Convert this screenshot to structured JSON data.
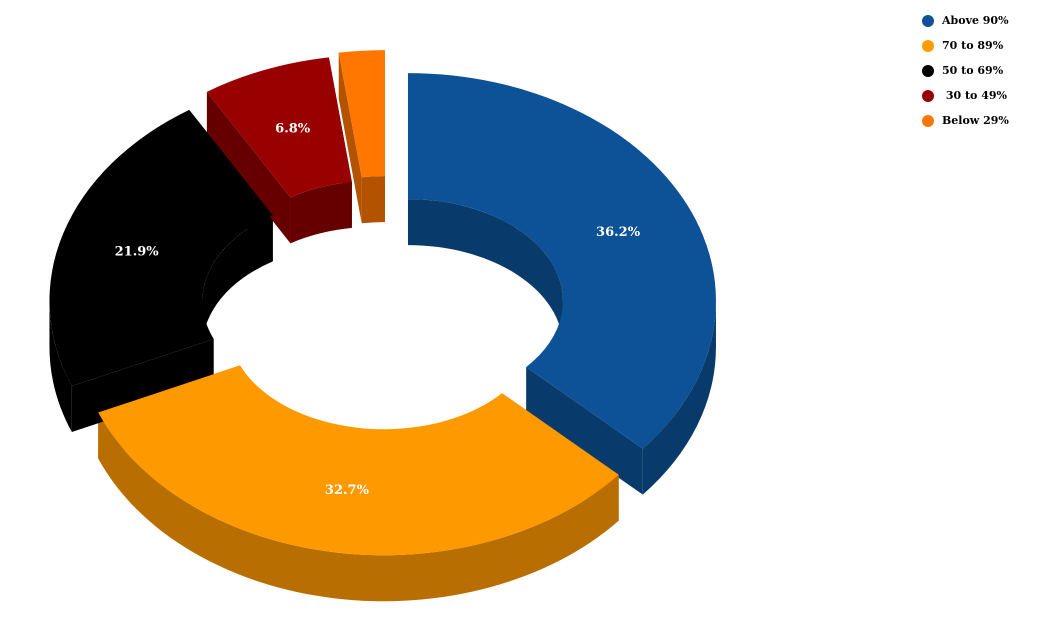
{
  "chart_data": {
    "type": "pie",
    "variant": "3d-donut-exploded",
    "title": "",
    "legend_position": "top-right",
    "slices": [
      {
        "name": "Above 90%",
        "value": 36.2,
        "label": "36.2%",
        "color": "#0D5297",
        "side_color": "#083A6B"
      },
      {
        "name": "70 to 89%",
        "value": 32.7,
        "label": "32.7%",
        "color": "#FF9900",
        "side_color": "#B86E00"
      },
      {
        "name": "50 to 69%",
        "value": 21.9,
        "label": "21.9%",
        "color": "#000000",
        "side_color": "#000000"
      },
      {
        "name": " 30 to 49%",
        "value": 6.8,
        "label": "6.8%",
        "color": "#990000",
        "side_color": "#660000"
      },
      {
        "name": "Below 29%",
        "value": 2.4,
        "label": "",
        "color": "#FF7700",
        "side_color": "#B35300"
      }
    ]
  }
}
